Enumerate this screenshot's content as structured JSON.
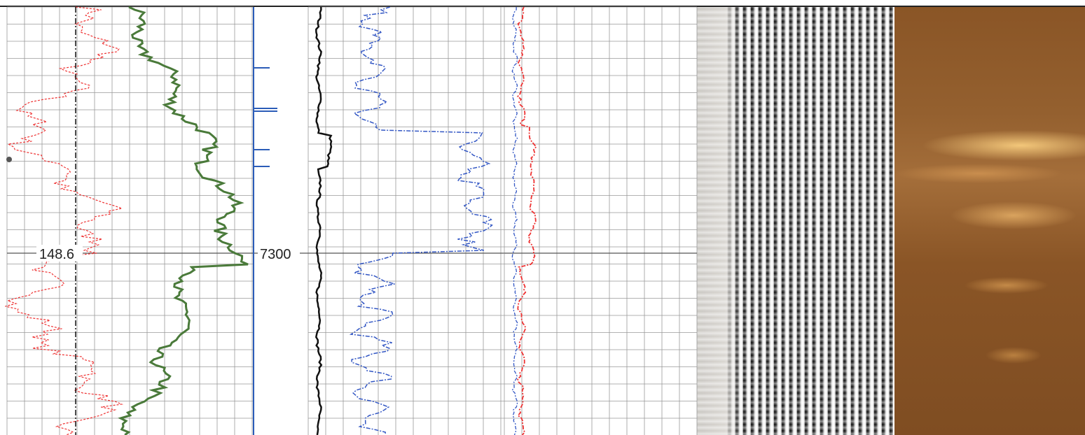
{
  "labels": {
    "curve_value": "148.6",
    "depth": "7300"
  }
}
